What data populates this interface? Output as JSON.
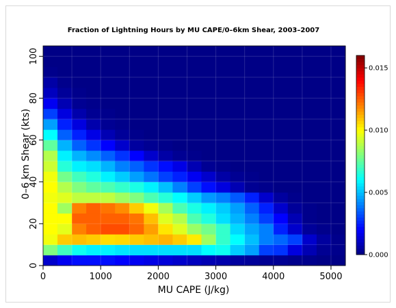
{
  "chart_data": {
    "type": "heatmap",
    "title": "Fraction of Lightning Hours by MU CAPE/0–6km Shear, 2003–2007",
    "xlabel": "MU CAPE (J/kg)",
    "ylabel": "0–6 km Shear (kts)",
    "xlim": [
      0,
      5250
    ],
    "ylim": [
      0,
      105
    ],
    "x_bin_width": 250,
    "y_bin_width": 5,
    "xticks": [
      0,
      1000,
      2000,
      3000,
      4000,
      5000
    ],
    "yticks": [
      0,
      20,
      40,
      60,
      80,
      100
    ],
    "grid": true,
    "colorbar": {
      "min": 0.0,
      "max": 0.016,
      "ticks": [
        0.0,
        0.005,
        0.01,
        0.015
      ],
      "tick_labels": [
        "0.000",
        "0.005",
        "0.010",
        "0.015"
      ],
      "colormap": "jet"
    },
    "rows_bottom_to_top": [
      [
        0.0012,
        0.0018,
        0.0022,
        0.0022,
        0.0022,
        0.002,
        0.0018,
        0.0016,
        0.0014,
        0.0012,
        0.001,
        0.0008,
        0.0007,
        0.0005,
        0.0004,
        0.0003,
        0.0003,
        0.0002,
        0.0002,
        0.0001,
        0.0001
      ],
      [
        0.008,
        0.007,
        0.0062,
        0.0058,
        0.0058,
        0.0056,
        0.0055,
        0.0055,
        0.0055,
        0.0055,
        0.0055,
        0.006,
        0.0062,
        0.0052,
        0.0045,
        0.003,
        0.0028,
        0.0015,
        0.0008,
        0.0003,
        0.0002
      ],
      [
        0.0098,
        0.0108,
        0.011,
        0.0108,
        0.0105,
        0.0106,
        0.0108,
        0.011,
        0.0112,
        0.0108,
        0.0103,
        0.0085,
        0.0068,
        0.006,
        0.005,
        0.004,
        0.0036,
        0.003,
        0.0012,
        0.0005,
        0.0002
      ],
      [
        0.01,
        0.0096,
        0.012,
        0.0125,
        0.0128,
        0.0128,
        0.0124,
        0.0115,
        0.0104,
        0.0095,
        0.0084,
        0.0078,
        0.0068,
        0.0054,
        0.0046,
        0.004,
        0.0025,
        0.0012,
        0.0004,
        0.0002,
        0.0001
      ],
      [
        0.01,
        0.01,
        0.0125,
        0.0125,
        0.0125,
        0.0125,
        0.0122,
        0.011,
        0.0095,
        0.0088,
        0.0072,
        0.0065,
        0.0055,
        0.0048,
        0.004,
        0.003,
        0.002,
        0.0008,
        0.0002,
        0.0001,
        0.0001
      ],
      [
        0.01,
        0.0085,
        0.012,
        0.0125,
        0.0122,
        0.0118,
        0.0108,
        0.0098,
        0.0086,
        0.0072,
        0.0064,
        0.0058,
        0.0052,
        0.0045,
        0.0035,
        0.0025,
        0.0012,
        0.0004,
        0.0002,
        0.0001,
        0.0001
      ],
      [
        0.0098,
        0.0095,
        0.009,
        0.009,
        0.009,
        0.0085,
        0.008,
        0.0072,
        0.0066,
        0.006,
        0.0052,
        0.0044,
        0.004,
        0.0034,
        0.0025,
        0.0012,
        0.0005,
        0.0002,
        0.0001,
        0.0001,
        0.0001
      ],
      [
        0.01,
        0.0088,
        0.008,
        0.0075,
        0.0072,
        0.0068,
        0.0064,
        0.0058,
        0.005,
        0.004,
        0.003,
        0.0022,
        0.0015,
        0.0008,
        0.0003,
        0.0002,
        0.0001,
        0.0001,
        0.0001,
        0.0001,
        0.0001
      ],
      [
        0.0098,
        0.0078,
        0.007,
        0.0065,
        0.0058,
        0.0052,
        0.0045,
        0.0038,
        0.003,
        0.0025,
        0.0018,
        0.0012,
        0.0006,
        0.0003,
        0.0002,
        0.0001,
        0.0001,
        0.0001,
        0.0001,
        0.0001,
        0.0001
      ],
      [
        0.0092,
        0.0066,
        0.0058,
        0.0055,
        0.0048,
        0.004,
        0.0035,
        0.0028,
        0.0022,
        0.0016,
        0.0008,
        0.0003,
        0.0002,
        0.0001,
        0.0001,
        0.0001,
        0.0001,
        0.0001,
        0.0001,
        0.0001,
        0.0001
      ],
      [
        0.0088,
        0.0058,
        0.0048,
        0.0042,
        0.0035,
        0.0028,
        0.002,
        0.0012,
        0.0006,
        0.0003,
        0.0002,
        0.0001,
        0.0001,
        0.0001,
        0.0001,
        0.0001,
        0.0001,
        0.0001,
        0.0001,
        0.0001,
        0.0001
      ],
      [
        0.0075,
        0.0048,
        0.0035,
        0.0028,
        0.002,
        0.0012,
        0.0005,
        0.0003,
        0.0002,
        0.0001,
        0.0001,
        0.0001,
        0.0001,
        0.0001,
        0.0001,
        0.0001,
        0.0001,
        0.0001,
        0.0001,
        0.0001,
        0.0001
      ],
      [
        0.006,
        0.0035,
        0.0025,
        0.0016,
        0.0008,
        0.0004,
        0.0002,
        0.0001,
        0.0001,
        0.0001,
        0.0001,
        0.0001,
        0.0001,
        0.0001,
        0.0001,
        0.0001,
        0.0001,
        0.0001,
        0.0001,
        0.0001,
        0.0001
      ],
      [
        0.0045,
        0.0025,
        0.0015,
        0.0007,
        0.0003,
        0.0002,
        0.0001,
        0.0001,
        0.0001,
        0.0001,
        0.0001,
        0.0001,
        0.0001,
        0.0001,
        0.0001,
        0.0001,
        0.0001,
        0.0001,
        0.0001,
        0.0001,
        0.0001
      ],
      [
        0.003,
        0.0015,
        0.0007,
        0.0003,
        0.0002,
        0.0001,
        0.0001,
        0.0001,
        0.0001,
        0.0001,
        0.0001,
        0.0001,
        0.0001,
        0.0001,
        0.0001,
        0.0001,
        0.0001,
        0.0001,
        0.0001,
        0.0001,
        0.0001
      ],
      [
        0.0018,
        0.0008,
        0.0003,
        0.0002,
        0.0001,
        0.0001,
        0.0001,
        0.0001,
        0.0001,
        0.0001,
        0.0001,
        0.0001,
        0.0001,
        0.0001,
        0.0001,
        0.0001,
        0.0001,
        0.0001,
        0.0001,
        0.0001,
        0.0001
      ],
      [
        0.001,
        0.0004,
        0.0002,
        0.0001,
        0.0001,
        0.0001,
        0.0001,
        0.0001,
        0.0001,
        0.0001,
        0.0001,
        0.0001,
        0.0001,
        0.0001,
        0.0001,
        0.0001,
        0.0001,
        0.0001,
        0.0001,
        0.0001,
        0.0001
      ],
      [
        0.0006,
        0.0002,
        0.0001,
        0.0001,
        0.0001,
        0.0001,
        0.0001,
        0.0001,
        0.0001,
        0.0001,
        0.0001,
        0.0001,
        0.0001,
        0.0001,
        0.0001,
        0.0001,
        0.0001,
        0.0001,
        0.0001,
        0.0001,
        0.0001
      ],
      [
        0.0002,
        0.0001,
        0.0001,
        0.0001,
        0.0001,
        0.0001,
        0.0001,
        0.0001,
        0.0001,
        0.0001,
        0.0001,
        0.0001,
        0.0001,
        0.0001,
        0.0001,
        0.0001,
        0.0001,
        0.0001,
        0.0001,
        0.0001,
        0.0001
      ],
      [
        0.0001,
        0.0001,
        0.0001,
        0.0001,
        0.0001,
        0.0001,
        0.0001,
        0.0001,
        0.0001,
        0.0001,
        0.0001,
        0.0001,
        0.0001,
        0.0001,
        0.0001,
        0.0001,
        0.0001,
        0.0001,
        0.0001,
        0.0001,
        0.0001
      ],
      [
        0.0001,
        0.0001,
        0.0001,
        0.0001,
        0.0001,
        0.0001,
        0.0001,
        0.0001,
        0.0001,
        0.0001,
        0.0001,
        0.0001,
        0.0001,
        0.0001,
        0.0001,
        0.0001,
        0.0001,
        0.0001,
        0.0001,
        0.0001,
        0.0001
      ]
    ]
  }
}
